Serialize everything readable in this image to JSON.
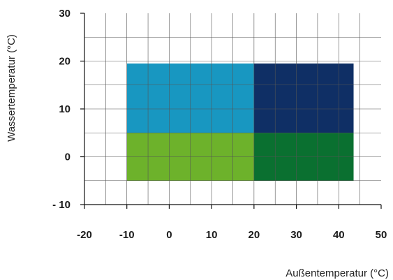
{
  "chart_data": {
    "type": "heatmap",
    "title": "",
    "xlabel": "Außentemperatur  (°C)",
    "ylabel": "Wassertemperatur  (°C)",
    "xlim": [
      -20,
      50
    ],
    "ylim": [
      -10,
      30
    ],
    "x_ticks": [
      "-20",
      "-10",
      "0",
      "10",
      "20",
      "30",
      "40",
      "50"
    ],
    "y_ticks": [
      "30",
      "20",
      "10",
      "0",
      "- 10"
    ],
    "grid": true,
    "grid_step": 5,
    "regions": [
      {
        "x": [
          -10,
          20
        ],
        "y": [
          5,
          19.5
        ],
        "color": "#1897c1"
      },
      {
        "x": [
          20,
          43.5
        ],
        "y": [
          5,
          19.5
        ],
        "color": "#0f2f65"
      },
      {
        "x": [
          -10,
          20
        ],
        "y": [
          -5,
          5
        ],
        "color": "#6db22b"
      },
      {
        "x": [
          20,
          43.5
        ],
        "y": [
          -5,
          5
        ],
        "color": "#0a7030"
      }
    ]
  }
}
